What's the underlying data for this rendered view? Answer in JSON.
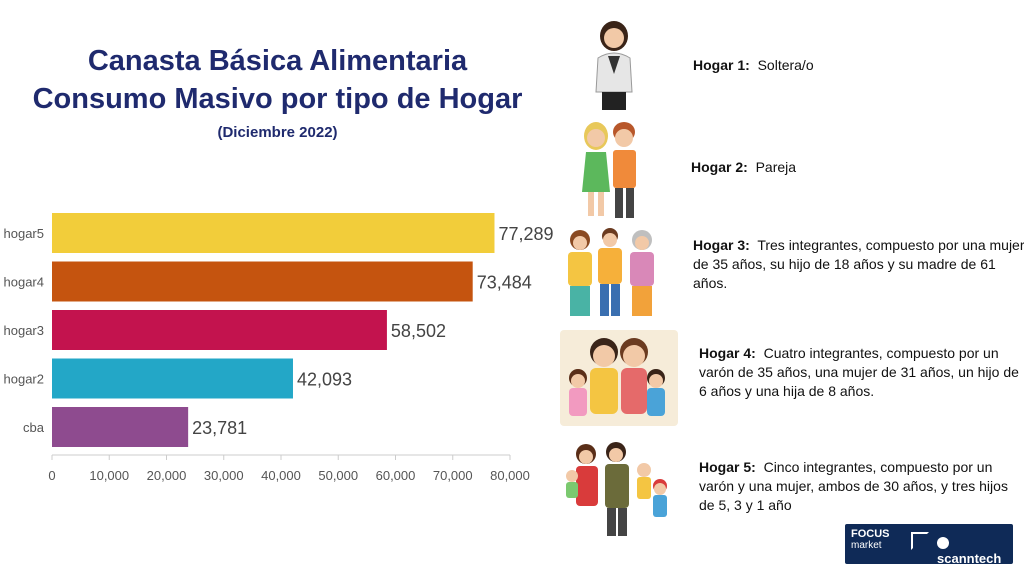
{
  "title": {
    "line1": "Canasta Básica Alimentaria",
    "line2": "Consumo Masivo por tipo de Hogar",
    "subtitle": "(Diciembre 2022)"
  },
  "chart_data": {
    "type": "bar",
    "orientation": "horizontal",
    "categories": [
      "hogar5",
      "hogar4",
      "hogar3",
      "hogar2",
      "cba"
    ],
    "values": [
      77289,
      73484,
      58502,
      42093,
      23781
    ],
    "value_labels": [
      "77,289",
      "73,484",
      "58,502",
      "42,093",
      "23,781"
    ],
    "colors": [
      "#f2cd3a",
      "#c5540f",
      "#c3134e",
      "#23a7c7",
      "#8e4b8f"
    ],
    "xlim": [
      0,
      80000
    ],
    "xticks": [
      0,
      10000,
      20000,
      30000,
      40000,
      50000,
      60000,
      70000,
      80000
    ],
    "xtick_labels": [
      "0",
      "10,000",
      "20,000",
      "30,000",
      "40,000",
      "50,000",
      "60,000",
      "70,000",
      "80,000"
    ],
    "grid": false,
    "legend": "none"
  },
  "households": [
    {
      "label": "Hogar 1:",
      "description": "Soltera/o",
      "icon": "single-woman-icon"
    },
    {
      "label": "Hogar 2:",
      "description": "Pareja",
      "icon": "couple-icon"
    },
    {
      "label": "Hogar 3:",
      "description": "Tres integrantes, compuesto por una mujer de 35 años, su hijo de 18 años y su madre de 61 años.",
      "icon": "three-member-family-icon"
    },
    {
      "label": "Hogar 4:",
      "description": "Cuatro integrantes, compuesto por un varón de 35 años, una mujer de 31 años, un hijo de 6 años y una hija de 8 años.",
      "icon": "four-member-family-icon"
    },
    {
      "label": "Hogar 5:",
      "description": "Cinco integrantes, compuesto por un varón y una mujer, ambos de 30 años, y tres hijos de 5, 3 y 1 año",
      "icon": "five-member-family-icon"
    }
  ],
  "logo": {
    "focus_line1": "FOCUS",
    "focus_line2": "market",
    "scanntech": "scanntech"
  }
}
